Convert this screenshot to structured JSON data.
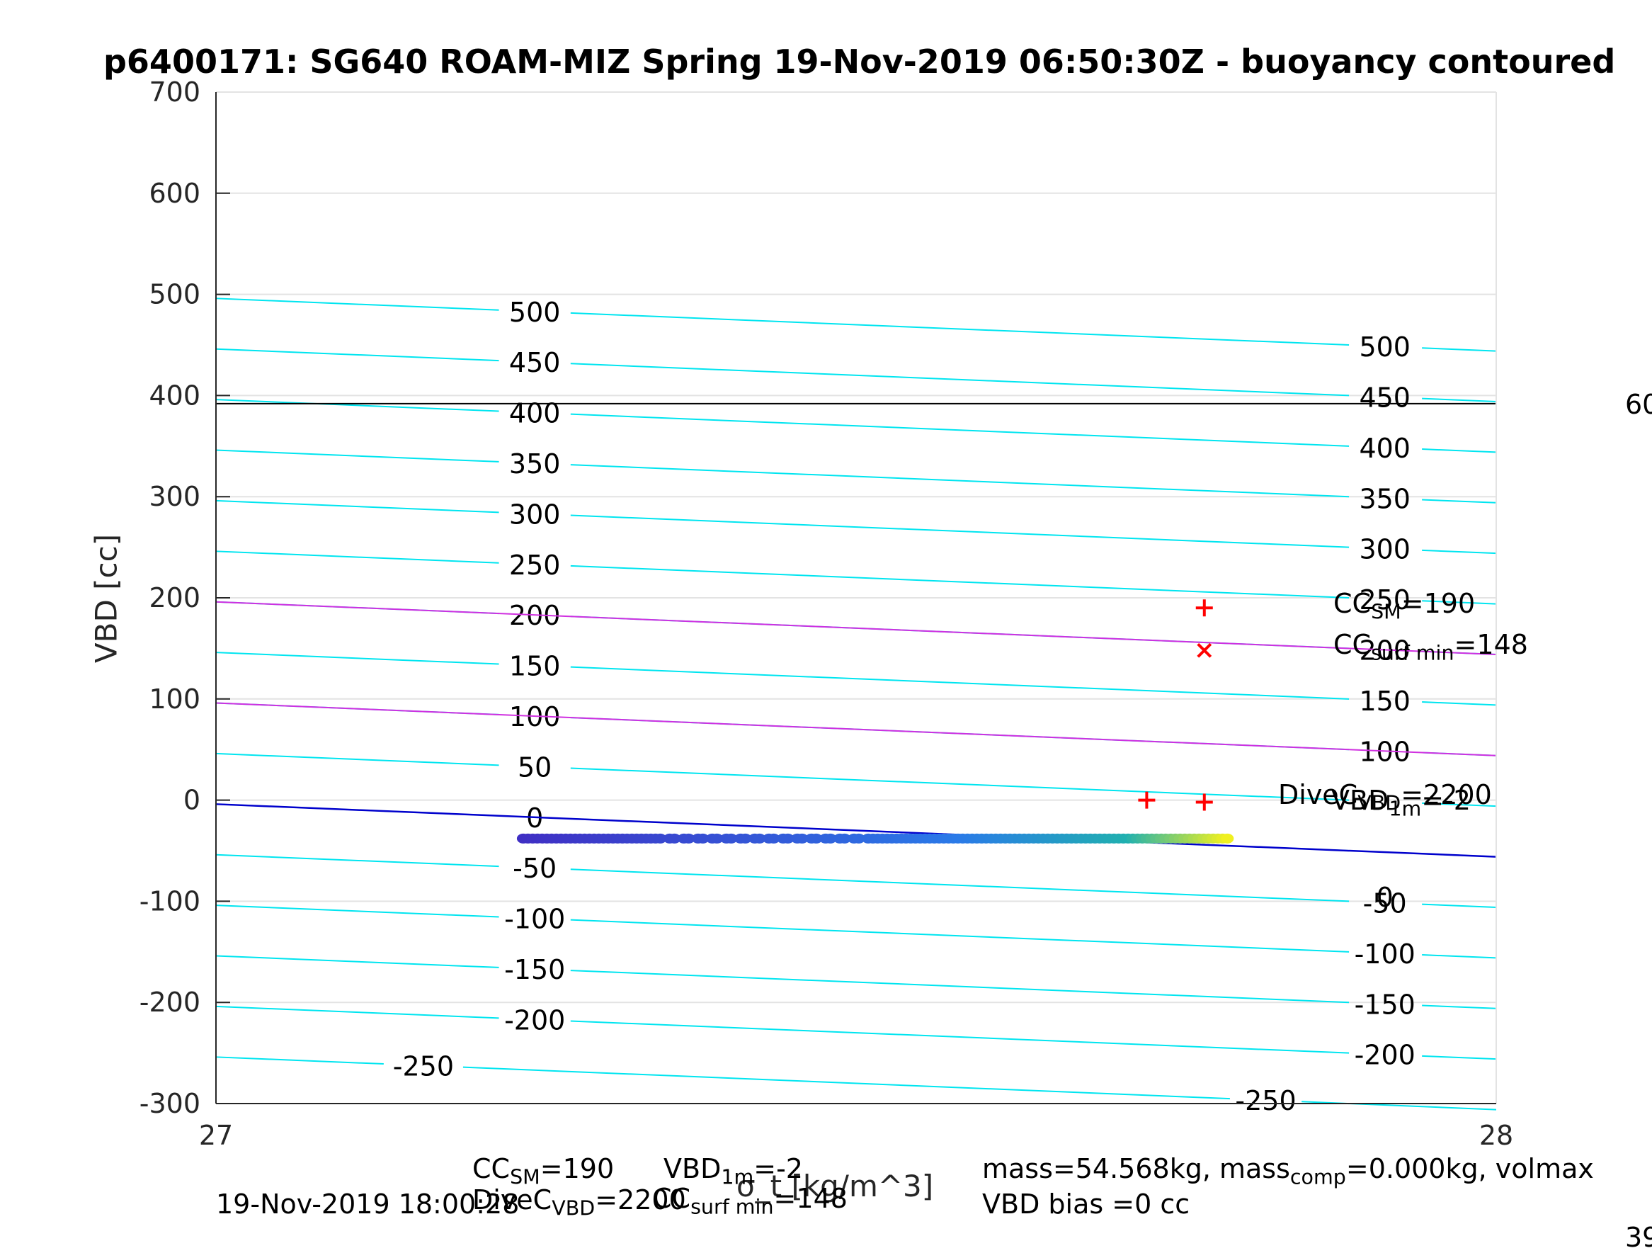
{
  "chart_data": {
    "type": "scatter",
    "title": "p6400171: SG640 ROAM-MIZ Spring 19-Nov-2019 06:50:30Z - buoyancy contoured",
    "xlabel": "σ_t [kg/m^3]",
    "ylabel": "VBD [cc]",
    "xlim": [
      27,
      28
    ],
    "ylim": [
      -300,
      700
    ],
    "xticks": [
      "27",
      "28"
    ],
    "yticks": [
      "-300",
      "-200",
      "-100",
      "0",
      "100",
      "200",
      "300",
      "400",
      "500",
      "600",
      "700"
    ],
    "grid": true,
    "contours": {
      "color": "#00e5f0",
      "levels": [
        500,
        450,
        400,
        350,
        300,
        250,
        200,
        150,
        100,
        50,
        0,
        -50,
        -100,
        -150,
        -200,
        -250
      ],
      "left_labels": [
        "500",
        "450",
        "400",
        "350",
        "300",
        "250",
        "200",
        "150",
        "100",
        "50",
        "0",
        "-50",
        "-100",
        "-150",
        "-200",
        "-250"
      ],
      "right_labels": [
        "500",
        "450",
        "400",
        "350",
        "300",
        "250",
        "200",
        "150",
        "100",
        "-50",
        "-100",
        "-150",
        "-200",
        "-250",
        "0"
      ],
      "y_at_x27": [
        496,
        446,
        396,
        346,
        296,
        246,
        196,
        146,
        96,
        46,
        -4,
        -54,
        -104,
        -154,
        -204,
        -254
      ],
      "slope_per_sigma": -52
    },
    "magenta_lines": {
      "color": "#d030e0",
      "y_at_x27": [
        196,
        96
      ],
      "slope_per_sigma": -52
    },
    "blue_line": {
      "color": "#0000cc",
      "y_at_x27": -4,
      "slope_per_sigma": -52
    },
    "black_hline": {
      "color": "#000000",
      "y": 392
    },
    "points": {
      "y": -38,
      "x_start": 27.24,
      "x_end": 27.79,
      "color_start": "#3f2fc4",
      "color_mid": "#2a7ae8",
      "color_teal": "#20b0b0",
      "color_end": "#f0f020"
    },
    "markers": [
      {
        "symbol": "+",
        "x": 27.772,
        "y": 190,
        "color": "#ff0000"
      },
      {
        "symbol": "x",
        "x": 27.772,
        "y": 148,
        "color": "#ff0000"
      },
      {
        "symbol": "+",
        "x": 27.727,
        "y": 0,
        "color": "#ff0000"
      },
      {
        "symbol": "+",
        "x": 27.772,
        "y": -2,
        "color": "#ff0000"
      }
    ],
    "annotations": {
      "cc_sm": {
        "main": "CC",
        "sub": "SM",
        "value": "=190"
      },
      "cc_surf": {
        "main": "CC",
        "sub": "surf min",
        "value": "=148"
      },
      "dive_vbd": {
        "main": "DiveC",
        "sub": "VBD",
        "value": "=2200"
      },
      "vbd_1m": {
        "main": "VBD",
        "sub": "1m",
        "value": "=-2"
      },
      "edge_label_1": "60",
      "edge_label_2": "39"
    },
    "footer": {
      "date": "19-Nov-2019 18:00:28",
      "cc_sm_line": {
        "main": "CC",
        "sub": "SM",
        "value": "=190"
      },
      "vbd_line": {
        "main": "VBD",
        "sub": "1m",
        "value": "=-2"
      },
      "dive_line": {
        "main": "DiveC",
        "sub": "VBD",
        "value": "=2200"
      },
      "cc_surf_line": {
        "main": "CC",
        "sub": "surf min",
        "value": "=148"
      },
      "mass_line": {
        "pre": "mass=54.568kg, mass",
        "sub": "comp",
        "post": "=0.000kg, volmax"
      },
      "bias_line": "VBD bias =0 cc"
    }
  }
}
